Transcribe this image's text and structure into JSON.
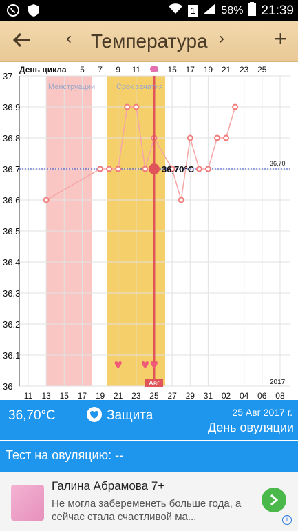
{
  "status_bar": {
    "battery": "58%",
    "time": "21:39",
    "sim_label": "1"
  },
  "app_bar": {
    "title": "Температура",
    "prev": "‹",
    "next": "›",
    "add": "+"
  },
  "chart_labels": {
    "cycle_day_label": "День цикла",
    "menstruation_label": "Менструации",
    "conception_label": "Срок зачатия",
    "month_label": "Авг",
    "year_label": "2017",
    "reference_value_label": "36,70",
    "selected_value_label": "36,70°C"
  },
  "chart_data": {
    "type": "line",
    "ylim": [
      36.0,
      37.0
    ],
    "y_ticks": [
      "37",
      "36.9",
      "36.8",
      "36.7",
      "36.6",
      "36.5",
      "36.4",
      "36.3",
      "36.2",
      "36.1",
      "36"
    ],
    "cycle_day_ticks": [
      "5",
      "7",
      "9",
      "11",
      "13",
      "15",
      "17",
      "19",
      "21",
      "23",
      "25"
    ],
    "x_ticks": [
      "11",
      "13",
      "15",
      "17",
      "19",
      "21",
      "23",
      "25",
      "27",
      "29",
      "31",
      "02",
      "04",
      "06",
      "08"
    ],
    "points_day_index": [
      2,
      8,
      9,
      10,
      11,
      12,
      13,
      14,
      15,
      16,
      17,
      18,
      19,
      20,
      21,
      22,
      23,
      24,
      25
    ],
    "series": [
      {
        "values": [
          36.6,
          36.7,
          36.7,
          36.7,
          36.9,
          36.9,
          36.7,
          36.8,
          null,
          36.7,
          36.6,
          36.8,
          36.7,
          36.7,
          36.8,
          36.8,
          36.9,
          null,
          null
        ]
      }
    ],
    "reference_value": 36.7,
    "selected_day_index": 14,
    "menstruation_range_index": [
      2,
      8
    ],
    "conception_range_index": [
      9,
      15
    ],
    "heart_marks_index": [
      10,
      13,
      14
    ]
  },
  "bottom_panel": {
    "temperature": "36,70°C",
    "protection_label": "Защита",
    "date": "25 Авг 2017 г.",
    "day_label": "День овуляции"
  },
  "test_row": {
    "label": "Тест на овуляцию: --"
  },
  "ad": {
    "name": "Галина Абрамова 7+",
    "text": "Не могла забеременеть больше года, а сейчас стала счастливой ма..."
  },
  "colors": {
    "primary_blue": "#1f96ee",
    "menstruation_pink": "#f9c6c4",
    "conception_yellow": "#f5cf6a",
    "curve_red": "#f07a7a",
    "highlight_red": "#e0555a"
  }
}
